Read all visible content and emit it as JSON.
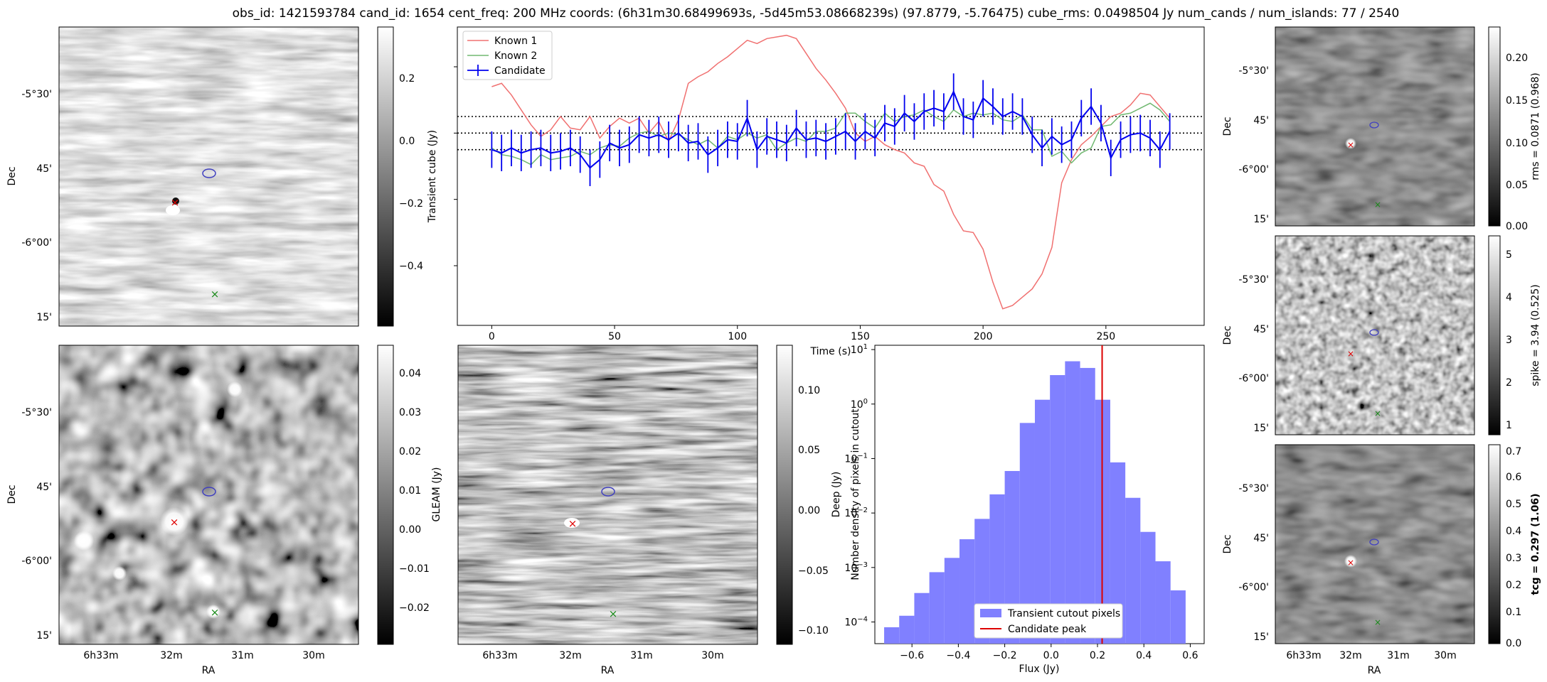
{
  "title": "obs_id: 1421593784 cand_id: 1654 cent_freq: 200 MHz coords: (6h31m30.68499693s, -5d45m53.08668239s) (97.8779, -5.76475) cube_rms: 0.0498504 Jy num_cands / num_islands: 77 / 2540",
  "colors": {
    "known1": "#f07070",
    "known2": "#70b870",
    "candidate": "#0000ee",
    "peak": "#dd0000",
    "hist": "#8080ff",
    "red_marker": "#dd0000",
    "green_marker": "#1a8a1a",
    "blue_contour": "#4040c0"
  },
  "axes": {
    "ra_ticks": [
      "6h33m",
      "32m",
      "31m",
      "30m"
    ],
    "dec_ticks": [
      "-5°30'",
      "45'",
      "-6°00'",
      "15'"
    ],
    "ra_label": "RA",
    "dec_label": "Dec"
  },
  "cutouts": {
    "transient": {
      "colorbar_label": "Transient cube (Jy)",
      "colorbar_ticks": [
        "0.2",
        "0.0",
        "−0.2",
        "−0.4"
      ]
    },
    "gleam": {
      "colorbar_label": "GLEAM (Jy)",
      "colorbar_ticks": [
        "0.04",
        "0.03",
        "0.02",
        "0.01",
        "0.00",
        "−0.01",
        "−0.02"
      ]
    },
    "deep": {
      "colorbar_label": "Deep (Jy)",
      "colorbar_ticks": [
        "0.10",
        "0.05",
        "0.00",
        "−0.05",
        "−0.10"
      ]
    },
    "rms": {
      "colorbar_label": "rms = 0.0871 (0.968)",
      "colorbar_ticks": [
        "0.20",
        "0.15",
        "0.10",
        "0.05",
        "0.00"
      ]
    },
    "spike": {
      "colorbar_label": "spike = 3.94 (0.525)",
      "colorbar_ticks": [
        "5",
        "4",
        "3",
        "2",
        "1"
      ]
    },
    "tcg": {
      "colorbar_label": "tcg = 0.297 (1.06)",
      "colorbar_ticks": [
        "0.7",
        "0.6",
        "0.5",
        "0.4",
        "0.3",
        "0.2",
        "0.1",
        "0.0"
      ]
    }
  },
  "chart_data": [
    {
      "type": "line",
      "title": "",
      "xlabel": "Time (s)",
      "ylabel": "",
      "xlim": [
        -14,
        290
      ],
      "ylim": [
        -5.8,
        3.2
      ],
      "xticks": [
        0,
        50,
        100,
        150,
        200,
        250
      ],
      "hlines": [
        0.5,
        0.0,
        -0.5
      ],
      "legend": [
        "Known 1",
        "Known 2",
        "Candidate"
      ],
      "legend_position": "upper-left",
      "series": [
        {
          "name": "Known 1",
          "x": [
            0,
            4,
            8,
            12,
            16,
            20,
            24,
            28,
            32,
            36,
            40,
            44,
            48,
            52,
            56,
            60,
            64,
            68,
            72,
            76,
            80,
            84,
            88,
            92,
            96,
            100,
            104,
            108,
            112,
            116,
            120,
            124,
            128,
            132,
            136,
            140,
            144,
            148,
            152,
            156,
            160,
            164,
            168,
            172,
            176,
            180,
            184,
            188,
            192,
            196,
            200,
            204,
            208,
            212,
            216,
            220,
            224,
            228,
            232,
            236,
            240,
            244,
            248,
            252,
            256,
            260,
            264,
            268,
            272,
            276
          ],
          "values": [
            1.4,
            1.5,
            1.15,
            0.7,
            0.25,
            -0.1,
            0.1,
            0.5,
            0.15,
            0.1,
            0.5,
            -0.15,
            0.2,
            0.45,
            0.3,
            0.45,
            0.0,
            0.35,
            -0.25,
            0.4,
            1.5,
            1.7,
            1.85,
            2.1,
            2.3,
            2.55,
            2.8,
            2.7,
            2.85,
            2.9,
            2.95,
            2.85,
            2.4,
            1.95,
            1.6,
            1.2,
            0.75,
            0.0,
            -0.25,
            -0.1,
            -0.35,
            -0.5,
            -0.6,
            -0.9,
            -1.0,
            -1.55,
            -1.75,
            -2.45,
            -2.95,
            -3.0,
            -3.5,
            -4.5,
            -5.3,
            -5.2,
            -4.95,
            -4.7,
            -4.25,
            -3.45,
            -1.5,
            -0.8,
            -0.35,
            -0.1,
            0.2,
            0.5,
            0.6,
            0.85,
            1.2,
            1.15,
            0.8,
            0.45
          ]
        },
        {
          "name": "Known 2",
          "x": [
            0,
            4,
            8,
            12,
            16,
            20,
            24,
            28,
            32,
            36,
            40,
            44,
            48,
            52,
            56,
            60,
            64,
            68,
            72,
            76,
            80,
            84,
            88,
            92,
            96,
            100,
            104,
            108,
            112,
            116,
            120,
            124,
            128,
            132,
            136,
            140,
            144,
            148,
            152,
            156,
            160,
            164,
            168,
            172,
            176,
            180,
            184,
            188,
            192,
            196,
            200,
            204,
            208,
            212,
            216,
            220,
            224,
            228,
            232,
            236,
            240,
            244,
            248,
            252,
            256,
            260,
            264,
            268,
            272,
            276
          ],
          "values": [
            -0.45,
            -0.65,
            -0.7,
            -0.8,
            -0.95,
            -0.65,
            -0.8,
            -0.75,
            -0.7,
            -0.55,
            -0.65,
            -0.45,
            -0.35,
            -0.4,
            -0.15,
            0.0,
            0.05,
            -0.1,
            0.0,
            -0.05,
            -0.2,
            -0.35,
            -0.2,
            -0.45,
            -0.1,
            -0.2,
            0.0,
            -0.15,
            -0.05,
            -0.5,
            -0.3,
            -0.15,
            -0.25,
            0.05,
            0.05,
            0.15,
            0.6,
            0.6,
            0.35,
            0.15,
            0.6,
            0.35,
            0.5,
            0.55,
            0.7,
            0.5,
            0.35,
            0.7,
            0.5,
            0.6,
            0.55,
            0.6,
            0.4,
            0.35,
            0.55,
            0.1,
            0.1,
            -0.7,
            -0.55,
            -0.9,
            -0.6,
            -0.45,
            0.2,
            0.25,
            0.55,
            0.6,
            0.75,
            0.9,
            0.7,
            0.35
          ]
        },
        {
          "name": "Candidate",
          "x": [
            0,
            4,
            8,
            12,
            16,
            20,
            24,
            28,
            32,
            36,
            40,
            44,
            48,
            52,
            56,
            60,
            64,
            68,
            72,
            76,
            80,
            84,
            88,
            92,
            96,
            100,
            104,
            108,
            112,
            116,
            120,
            124,
            128,
            132,
            136,
            140,
            144,
            148,
            152,
            156,
            160,
            164,
            168,
            172,
            176,
            180,
            184,
            188,
            192,
            196,
            200,
            204,
            208,
            212,
            216,
            220,
            224,
            228,
            232,
            236,
            240,
            244,
            248,
            252,
            256,
            260,
            264,
            268,
            272,
            276
          ],
          "values": [
            -0.5,
            -0.6,
            -0.45,
            -0.6,
            -0.5,
            -0.45,
            -0.6,
            -0.55,
            -0.45,
            -0.65,
            -1.05,
            -0.8,
            -0.3,
            -0.45,
            -0.35,
            -0.05,
            -0.15,
            -0.05,
            -0.2,
            0.0,
            -0.3,
            -0.25,
            -0.65,
            -0.45,
            -0.2,
            -0.25,
            0.45,
            -0.5,
            -0.1,
            -0.2,
            -0.3,
            0.15,
            -0.2,
            -0.15,
            -0.25,
            -0.1,
            0.05,
            -0.25,
            0.05,
            -0.15,
            0.3,
            0.2,
            0.6,
            0.35,
            0.65,
            0.75,
            0.65,
            1.25,
            0.5,
            0.4,
            1.05,
            0.8,
            0.5,
            0.65,
            0.5,
            -0.05,
            -0.45,
            -0.1,
            -0.35,
            -0.2,
            0.45,
            0.8,
            0.3,
            -0.75,
            -0.2,
            -0.05,
            0.0,
            -0.15,
            -0.5,
            0.05
          ]
        }
      ]
    },
    {
      "type": "histogram",
      "title": "",
      "xlabel": "Flux (Jy)",
      "ylabel": "Number density of pixels in cutout",
      "yscale": "log",
      "xlim": [
        -0.76,
        0.66
      ],
      "ylim": [
        4e-05,
        12
      ],
      "xticks": [
        "−0.6",
        "−0.4",
        "−0.2",
        "0.0",
        "0.2",
        "0.4",
        "0.6"
      ],
      "yticks": [
        "10^1",
        "10^0",
        "10^-1",
        "10^-2",
        "10^-3",
        "10^-4"
      ],
      "bins": [
        -0.72,
        -0.655,
        -0.59,
        -0.525,
        -0.46,
        -0.395,
        -0.33,
        -0.265,
        -0.2,
        -0.135,
        -0.07,
        -0.005,
        0.06,
        0.125,
        0.19,
        0.255,
        0.32,
        0.385,
        0.45,
        0.515,
        0.58
      ],
      "values": [
        8e-05,
        0.00013,
        0.00034,
        0.00082,
        0.0015,
        0.0033,
        0.0078,
        0.022,
        0.059,
        0.45,
        1.2,
        3.4,
        6.1,
        4.6,
        1.2,
        0.085,
        0.019,
        0.0045,
        0.0013,
        0.00038
      ],
      "bin_width": 0.065,
      "peak_line": 0.22,
      "legend": [
        "Transient cutout pixels",
        "Candidate peak"
      ],
      "legend_position": "lower-center"
    }
  ]
}
